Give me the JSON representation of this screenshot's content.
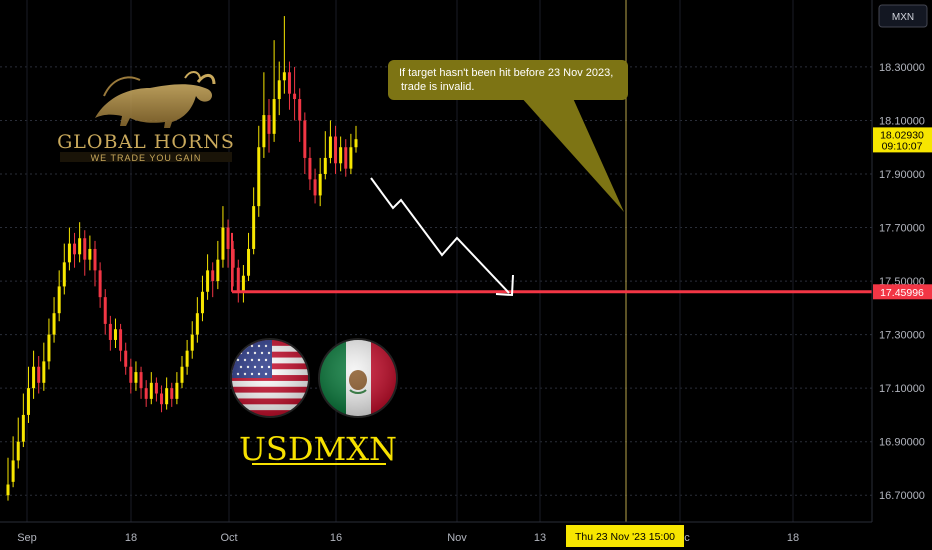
{
  "symbol_badge": "MXN",
  "chart_data": {
    "type": "candlestick",
    "title": "USDMXN",
    "ylim": [
      16.6,
      18.55
    ],
    "y_ticks": [
      16.7,
      16.9,
      17.1,
      17.3,
      17.5,
      17.7,
      17.9,
      18.1,
      18.3
    ],
    "y_tick_labels": [
      "16.70000",
      "16.90000",
      "17.10000",
      "17.30000",
      "17.50000",
      "17.70000",
      "17.90000",
      "18.10000",
      "18.30000"
    ],
    "x_tick_labels": [
      "Sep",
      "18",
      "Oct",
      "16",
      "Nov",
      "13",
      "Dec",
      "18"
    ],
    "current_price": {
      "label": "18.02930",
      "value": 18.0293,
      "countdown": "09:10:07",
      "color": "#f7e600"
    },
    "support_level": {
      "label": "17.45996",
      "value": 17.45996,
      "color": "#f23645"
    },
    "crosshair_label": "Thu 23 Nov '23   15:00",
    "annotation": "If target hasn't been hit before 23 Nov 2023, trade is invalid.",
    "candles": [
      [
        16.74,
        16.7,
        16.84,
        16.68
      ],
      [
        16.83,
        16.75,
        16.92,
        16.73
      ],
      [
        16.9,
        16.83,
        16.99,
        16.8
      ],
      [
        17.0,
        16.9,
        17.08,
        16.88
      ],
      [
        17.1,
        17.0,
        17.18,
        16.97
      ],
      [
        17.18,
        17.1,
        17.24,
        17.06
      ],
      [
        17.12,
        17.18,
        17.22,
        17.08
      ],
      [
        17.2,
        17.12,
        17.27,
        17.09
      ],
      [
        17.3,
        17.2,
        17.36,
        17.17
      ],
      [
        17.38,
        17.3,
        17.44,
        17.27
      ],
      [
        17.48,
        17.38,
        17.54,
        17.35
      ],
      [
        17.57,
        17.48,
        17.64,
        17.45
      ],
      [
        17.64,
        17.57,
        17.7,
        17.54
      ],
      [
        17.6,
        17.64,
        17.68,
        17.55
      ],
      [
        17.66,
        17.6,
        17.72,
        17.57
      ],
      [
        17.58,
        17.66,
        17.69,
        17.52
      ],
      [
        17.62,
        17.58,
        17.67,
        17.54
      ],
      [
        17.54,
        17.62,
        17.65,
        17.48
      ],
      [
        17.44,
        17.54,
        17.57,
        17.4
      ],
      [
        17.34,
        17.44,
        17.47,
        17.3
      ],
      [
        17.28,
        17.34,
        17.37,
        17.24
      ],
      [
        17.32,
        17.28,
        17.36,
        17.25
      ],
      [
        17.24,
        17.32,
        17.34,
        17.2
      ],
      [
        17.18,
        17.24,
        17.27,
        17.15
      ],
      [
        17.12,
        17.18,
        17.21,
        17.08
      ],
      [
        17.16,
        17.12,
        17.2,
        17.09
      ],
      [
        17.1,
        17.16,
        17.18,
        17.06
      ],
      [
        17.06,
        17.1,
        17.13,
        17.03
      ],
      [
        17.12,
        17.06,
        17.16,
        17.04
      ],
      [
        17.08,
        17.12,
        17.14,
        17.05
      ],
      [
        17.04,
        17.08,
        17.11,
        17.01
      ],
      [
        17.1,
        17.04,
        17.14,
        17.02
      ],
      [
        17.06,
        17.1,
        17.12,
        17.03
      ],
      [
        17.12,
        17.06,
        17.16,
        17.04
      ],
      [
        17.18,
        17.12,
        17.22,
        17.1
      ],
      [
        17.24,
        17.18,
        17.28,
        17.15
      ],
      [
        17.3,
        17.24,
        17.35,
        17.21
      ],
      [
        17.38,
        17.3,
        17.44,
        17.27
      ],
      [
        17.46,
        17.38,
        17.52,
        17.35
      ],
      [
        17.54,
        17.46,
        17.6,
        17.43
      ],
      [
        17.5,
        17.54,
        17.57,
        17.44
      ],
      [
        17.58,
        17.5,
        17.65,
        17.47
      ],
      [
        17.7,
        17.58,
        17.78,
        17.55
      ],
      [
        17.62,
        17.7,
        17.73,
        17.55
      ],
      [
        17.55,
        17.62,
        17.65,
        17.48
      ],
      [
        17.46,
        17.55,
        17.58,
        17.42
      ],
      [
        17.52,
        17.46,
        17.56,
        17.42
      ],
      [
        17.62,
        17.52,
        17.68,
        17.5
      ],
      [
        17.78,
        17.62,
        17.85,
        17.6
      ],
      [
        18.0,
        17.78,
        18.08,
        17.74
      ],
      [
        18.12,
        18.0,
        18.28,
        17.96
      ],
      [
        18.05,
        18.12,
        18.18,
        17.98
      ],
      [
        18.18,
        18.05,
        18.4,
        18.02
      ],
      [
        18.25,
        18.18,
        18.32,
        18.12
      ],
      [
        18.28,
        18.25,
        18.49,
        18.2
      ],
      [
        18.2,
        18.28,
        18.32,
        18.14
      ],
      [
        18.18,
        18.2,
        18.3,
        18.1
      ],
      [
        18.1,
        18.18,
        18.22,
        18.02
      ],
      [
        17.96,
        18.1,
        18.13,
        17.9
      ],
      [
        17.88,
        17.96,
        18.0,
        17.84
      ],
      [
        17.82,
        17.88,
        17.92,
        17.79
      ],
      [
        17.9,
        17.82,
        17.96,
        17.78
      ],
      [
        17.96,
        17.9,
        18.06,
        17.88
      ],
      [
        18.04,
        17.96,
        18.1,
        17.94
      ],
      [
        17.94,
        18.04,
        18.08,
        17.9
      ],
      [
        18.0,
        17.94,
        18.04,
        17.91
      ],
      [
        17.92,
        18.0,
        18.03,
        17.89
      ],
      [
        18.0,
        17.92,
        18.05,
        17.9
      ],
      [
        18.03,
        18.0,
        18.08,
        17.98
      ]
    ]
  },
  "logo": {
    "name": "GLOBAL HORNS",
    "tagline": "WE TRADE YOU GAIN"
  },
  "pair_label": "USDMXN"
}
